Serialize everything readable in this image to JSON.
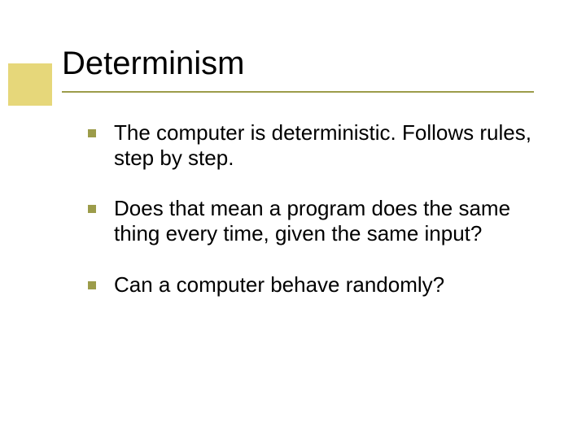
{
  "colors": {
    "accent": "#e6d77a",
    "underline": "#9c9c4a",
    "bullet": "#9c9c4a",
    "title": "#000000",
    "body": "#000000",
    "background": "#ffffff"
  },
  "typography": {
    "title_fontsize": 40,
    "body_fontsize": 26,
    "font_family": "Verdana"
  },
  "title": "Determinism",
  "bullets": [
    "The computer is deterministic.  Follows rules, step by step.",
    "Does that mean a program does the same thing every time, given the same input?",
    "Can a computer behave randomly?"
  ]
}
